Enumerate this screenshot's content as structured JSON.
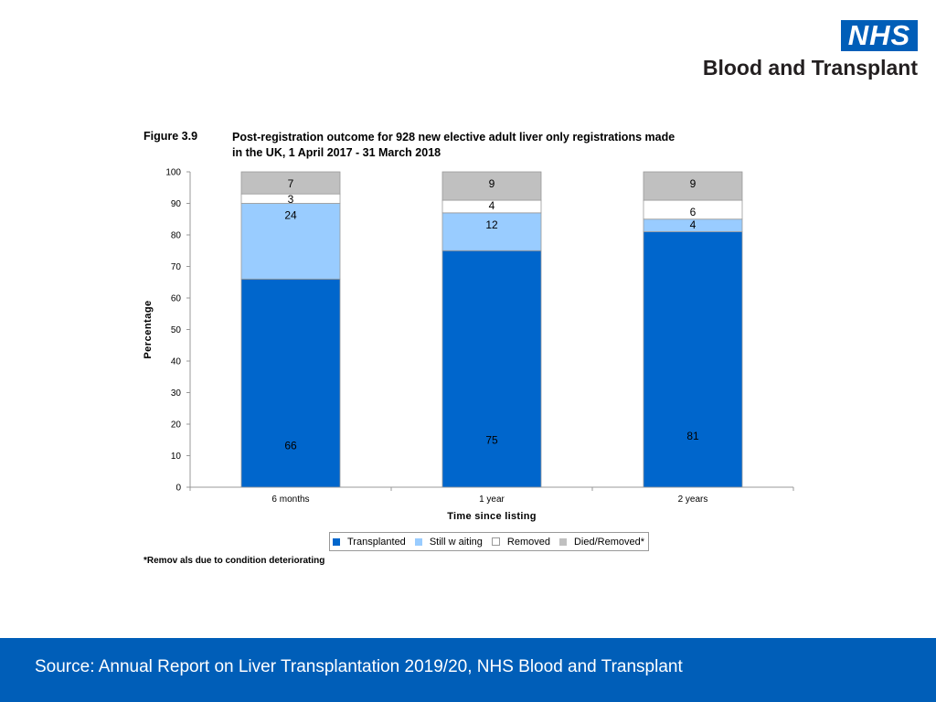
{
  "header": {
    "logo_text": "NHS",
    "org_name": "Blood and Transplant"
  },
  "figure": {
    "number": "Figure 3.9",
    "title_line1": "Post-registration outcome for 928 new elective adult liver only registrations made",
    "title_line2": "in the UK, 1 April 2017 - 31 March 2018"
  },
  "chart_data": {
    "type": "bar",
    "stacked": true,
    "title": "Post-registration outcome for 928 new elective adult liver only registrations made in the UK, 1 April 2017 - 31 March 2018",
    "categories": [
      "6 months",
      "1 year",
      "2 years"
    ],
    "xlabel": "Time since listing",
    "ylabel": "Percentage",
    "ylim": [
      0,
      100
    ],
    "yticks": [
      0,
      10,
      20,
      30,
      40,
      50,
      60,
      70,
      80,
      90,
      100
    ],
    "grid": false,
    "legend_position": "bottom",
    "series": [
      {
        "name": "Transplanted",
        "color": "#0066cc",
        "values": [
          66,
          75,
          81
        ]
      },
      {
        "name": "Still w aiting",
        "color": "#99ccff",
        "values": [
          24,
          12,
          4
        ]
      },
      {
        "name": "Removed",
        "color": "#ffffff",
        "values": [
          3,
          4,
          6
        ]
      },
      {
        "name": "Died/Removed*",
        "color": "#c0c0c0",
        "values": [
          7,
          9,
          9
        ]
      }
    ]
  },
  "footnote": "*Remov als due to condition deteriorating",
  "footer": {
    "source": "Source: Annual Report on Liver Transplantation 2019/20, NHS Blood and Transplant",
    "background": "#005eb8"
  }
}
